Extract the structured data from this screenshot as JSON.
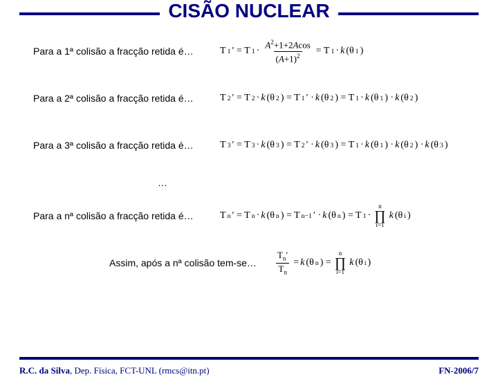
{
  "title": "CISÃO NUCLEAR",
  "rows": [
    {
      "text": "Para a 1ª colisão a fracção retida é…",
      "eq": "T<sub>1</sub>′ = T<sub>1</sub> · <span class='frac'><span class='num'><span class='it'>A</span><sup>2</sup>+1+2<span class='it'>A</span>cos</span><span class='den'>(<span class='it'>A</span>+1)<sup>2</sup></span></span> = T<sub>1</sub> · <span class='it'>k</span>(θ<sub>1</sub>)"
    },
    {
      "text": "Para a 2ª colisão a fracção retida é…",
      "eq": "T<sub>2</sub>′ = T<sub>2</sub> · <span class='it'>k</span>(θ<sub>2</sub>) = T<sub>1</sub>′ · <span class='it'>k</span>(θ<sub>2</sub>) = T<sub>1</sub> · <span class='it'>k</span>(θ<sub>1</sub>) · <span class='it'>k</span>(θ<sub>2</sub>)"
    },
    {
      "text": "Para a 3ª colisão a fracção retida é…",
      "eq": "T<sub>3</sub>′ = T<sub>3</sub> · <span class='it'>k</span>(θ<sub>3</sub>) = T<sub>2</sub>′ · <span class='it'>k</span>(θ<sub>3</sub>) = T<sub>1</sub> · <span class='it'>k</span>(θ<sub>1</sub>) · <span class='it'>k</span>(θ<sub>2</sub>) · <span class='it'>k</span>(θ<sub>3</sub>)"
    }
  ],
  "ellipsis": "…",
  "row_n": {
    "text": "Para a nª colisão a fracção retida é…",
    "eq": "T<sub>n</sub>′ = T<sub>n</sub> · <span class='it'>k</span>(θ<sub>n</sub>) = T<sub>n−1</sub>′ · <span class='it'>k</span>(θ<sub>n</sub>) = T<sub>1</sub> · <span class='prod'><span class='top'>n</span><span class='sym'>∏</span><span class='bot'>i=1</span></span> <span class='it'>k</span>(θ<sub>i</sub>)"
  },
  "conclusion": {
    "text": "Assim, após a nª colisão tem-se…",
    "eq": "<span class='frac'><span class='num'>T<sub>n</sub>′</span><span class='den'>T<sub>n</sub></span></span> = <span class='it'>k</span>(θ<sub>n</sub>) = <span class='prod'><span class='top'>n</span><span class='sym'>∏</span><span class='bot'>i=1</span></span> <span class='it'>k</span>(θ<sub>i</sub>)"
  },
  "footer": {
    "left_bold": "R.C. da Silva",
    "left_rest": ", Dep. Física, FCT-UNL (rmcs@itn.pt)",
    "right": "FN-2006/7"
  },
  "colors": {
    "accent": "#000080",
    "text": "#000000",
    "bg": "#ffffff"
  }
}
